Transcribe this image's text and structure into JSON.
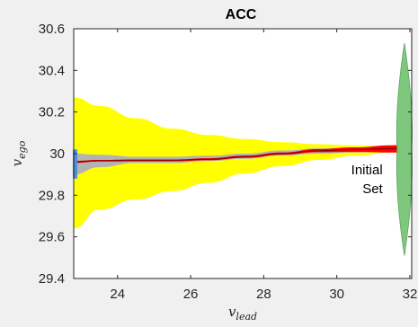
{
  "chart_data": {
    "type": "area",
    "title": "ACC",
    "xlabel": {
      "base": "v",
      "sub": "lead"
    },
    "ylabel": {
      "base": "v",
      "sub": "ego"
    },
    "xlim": [
      22.8,
      32.05
    ],
    "ylim": [
      29.4,
      30.6
    ],
    "x_ticks": [
      24,
      26,
      28,
      30,
      32
    ],
    "x_tick_labels": [
      "24",
      "26",
      "28",
      "30",
      "32"
    ],
    "y_ticks": [
      29.4,
      29.6,
      29.8,
      30,
      30.2,
      30.4,
      30.6
    ],
    "y_tick_labels": [
      "29.4",
      "29.6",
      "29.8",
      "30",
      "30.2",
      "30.4",
      "30.6"
    ],
    "grid": false,
    "annotation": {
      "lines": [
        "Initial",
        "Set"
      ],
      "x": 31.6,
      "y": 29.9
    },
    "series": [
      {
        "color": "#ffff00",
        "x": [
          22.8,
          23.5,
          24.5,
          25.5,
          26.5,
          27.5,
          28.5,
          29.5,
          30.5,
          31.5,
          32.05
        ],
        "upper": [
          30.27,
          30.23,
          30.17,
          30.12,
          30.09,
          30.07,
          30.055,
          30.045,
          30.04,
          30.035,
          30.035
        ],
        "lower": [
          29.64,
          29.73,
          29.78,
          29.82,
          29.86,
          29.905,
          29.94,
          29.97,
          29.99,
          30.005,
          30.01
        ]
      },
      {
        "color": "#b3b3b3",
        "x": [
          22.8,
          23.5,
          24.5,
          25.5,
          26.5,
          27.5,
          28.5,
          29.5,
          30.5,
          31.5,
          32.05
        ],
        "upper": [
          30.0,
          29.995,
          29.985,
          29.985,
          29.99,
          30.0,
          30.015,
          30.025,
          30.03,
          30.03,
          30.03
        ],
        "lower": [
          29.9,
          29.935,
          29.955,
          29.955,
          29.965,
          29.975,
          29.99,
          30.0,
          30.005,
          30.01,
          30.015
        ]
      },
      {
        "color": "#ff0000",
        "x": [
          22.8,
          23.5,
          24.5,
          25.5,
          26.5,
          27.5,
          28.5,
          29.5,
          30.5,
          31.5,
          32.05
        ],
        "upper": [
          29.965,
          29.97,
          29.972,
          29.972,
          29.978,
          29.99,
          30.005,
          30.022,
          30.03,
          30.04,
          30.045
        ],
        "lower": [
          29.955,
          29.962,
          29.963,
          29.963,
          29.968,
          29.98,
          29.995,
          30.007,
          30.008,
          30.005,
          30.0
        ]
      },
      {
        "color": "#8b0000",
        "x": [
          22.8,
          23.5,
          24.5,
          25.5,
          26.5,
          27.5,
          28.5,
          29.5,
          30.5,
          31.5,
          32.05
        ],
        "y": [
          29.96,
          29.966,
          29.968,
          29.968,
          29.973,
          29.985,
          30.0,
          30.014,
          30.02,
          30.024,
          30.025
        ]
      },
      {
        "color": "#4a90d9",
        "x": [
          22.8,
          22.8
        ],
        "upper": [
          30.02
        ],
        "lower": [
          29.88
        ]
      },
      {
        "color": "#7ec87e",
        "x": [
          31.65,
          32.05
        ],
        "upper": [
          30.53
        ],
        "lower": [
          29.51
        ]
      }
    ]
  }
}
